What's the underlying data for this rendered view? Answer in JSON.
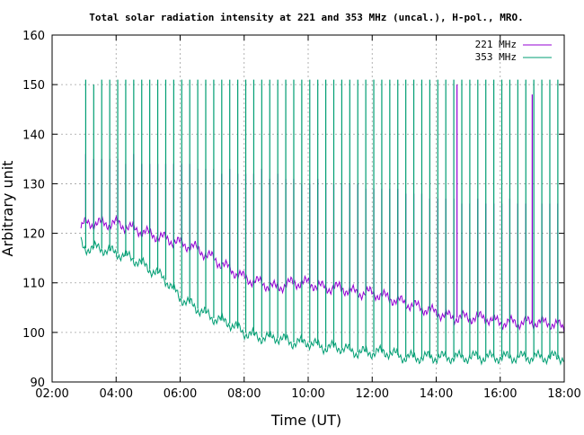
{
  "chart_data": {
    "type": "line",
    "title": "Total solar radiation intensity at 221 and 353 MHz (uncal.), H-pol., MRO.",
    "xlabel": "Time (UT)",
    "ylabel": "Arbitrary unit",
    "x_unit": "hours UT",
    "xlim": [
      2,
      18
    ],
    "ylim": [
      90,
      160
    ],
    "x_ticks": [
      {
        "value": 2,
        "label": "02:00"
      },
      {
        "value": 4,
        "label": "04:00"
      },
      {
        "value": 6,
        "label": "06:00"
      },
      {
        "value": 8,
        "label": "08:00"
      },
      {
        "value": 10,
        "label": "10:00"
      },
      {
        "value": 12,
        "label": "12:00"
      },
      {
        "value": 14,
        "label": "14:00"
      },
      {
        "value": 16,
        "label": "16:00"
      },
      {
        "value": 18,
        "label": "18:00"
      }
    ],
    "y_ticks": [
      {
        "value": 90,
        "label": "90"
      },
      {
        "value": 100,
        "label": "100"
      },
      {
        "value": 110,
        "label": "110"
      },
      {
        "value": 120,
        "label": "120"
      },
      {
        "value": 130,
        "label": "130"
      },
      {
        "value": 140,
        "label": "140"
      },
      {
        "value": 150,
        "label": "150"
      },
      {
        "value": 160,
        "label": "160"
      }
    ],
    "grid": true,
    "legend_position": "top-right",
    "series": [
      {
        "name": "221 MHz",
        "color": "#9400d3",
        "x": [
          2.9,
          3.0,
          3.5,
          4.0,
          4.5,
          5.0,
          5.5,
          6.0,
          6.5,
          7.0,
          7.5,
          8.0,
          8.5,
          9.0,
          9.5,
          10.0,
          10.5,
          11.0,
          11.5,
          12.0,
          12.5,
          13.0,
          13.5,
          14.0,
          14.5,
          15.0,
          15.5,
          16.0,
          16.5,
          17.0,
          17.5,
          18.0
        ],
        "y": [
          121,
          122,
          122,
          122,
          121,
          120,
          119,
          118,
          117,
          115,
          113,
          111,
          110,
          109,
          110,
          110,
          109,
          109,
          108,
          108,
          107,
          106,
          105,
          104,
          103,
          103,
          103,
          102,
          102,
          102,
          102,
          101
        ],
        "spikes": [
          {
            "x": 3.05,
            "y": 136
          },
          {
            "x": 3.3,
            "y": 135
          },
          {
            "x": 3.55,
            "y": 135
          },
          {
            "x": 3.8,
            "y": 135
          },
          {
            "x": 4.05,
            "y": 135
          },
          {
            "x": 4.3,
            "y": 134
          },
          {
            "x": 4.55,
            "y": 136
          },
          {
            "x": 4.8,
            "y": 134
          },
          {
            "x": 5.05,
            "y": 134
          },
          {
            "x": 5.3,
            "y": 134
          },
          {
            "x": 5.55,
            "y": 134
          },
          {
            "x": 5.8,
            "y": 134
          },
          {
            "x": 6.05,
            "y": 134
          },
          {
            "x": 6.3,
            "y": 134
          },
          {
            "x": 6.55,
            "y": 133
          },
          {
            "x": 6.8,
            "y": 133
          },
          {
            "x": 7.05,
            "y": 133
          },
          {
            "x": 7.3,
            "y": 132
          },
          {
            "x": 7.55,
            "y": 133
          },
          {
            "x": 7.8,
            "y": 132
          },
          {
            "x": 8.05,
            "y": 132
          },
          {
            "x": 8.3,
            "y": 132
          },
          {
            "x": 8.55,
            "y": 133
          },
          {
            "x": 8.8,
            "y": 131
          },
          {
            "x": 9.05,
            "y": 132
          },
          {
            "x": 9.3,
            "y": 131
          },
          {
            "x": 9.55,
            "y": 131
          },
          {
            "x": 9.8,
            "y": 130
          },
          {
            "x": 10.05,
            "y": 130
          },
          {
            "x": 10.3,
            "y": 131
          },
          {
            "x": 10.55,
            "y": 130
          },
          {
            "x": 10.8,
            "y": 130
          },
          {
            "x": 11.05,
            "y": 130
          },
          {
            "x": 11.3,
            "y": 130
          },
          {
            "x": 11.55,
            "y": 130
          },
          {
            "x": 11.8,
            "y": 129
          },
          {
            "x": 12.05,
            "y": 129
          },
          {
            "x": 12.3,
            "y": 129
          },
          {
            "x": 12.55,
            "y": 129
          },
          {
            "x": 12.8,
            "y": 129
          },
          {
            "x": 13.05,
            "y": 128
          },
          {
            "x": 13.3,
            "y": 128
          },
          {
            "x": 13.55,
            "y": 128
          },
          {
            "x": 13.8,
            "y": 127
          },
          {
            "x": 14.05,
            "y": 127
          },
          {
            "x": 14.3,
            "y": 127
          },
          {
            "x": 14.55,
            "y": 127
          },
          {
            "x": 14.65,
            "y": 150
          },
          {
            "x": 14.8,
            "y": 126
          },
          {
            "x": 15.05,
            "y": 126
          },
          {
            "x": 15.3,
            "y": 127
          },
          {
            "x": 15.55,
            "y": 126
          },
          {
            "x": 15.8,
            "y": 126
          },
          {
            "x": 16.05,
            "y": 126
          },
          {
            "x": 16.3,
            "y": 127
          },
          {
            "x": 16.55,
            "y": 126
          },
          {
            "x": 16.8,
            "y": 126
          },
          {
            "x": 17.0,
            "y": 148
          },
          {
            "x": 17.3,
            "y": 126
          },
          {
            "x": 17.55,
            "y": 126
          },
          {
            "x": 17.8,
            "y": 126
          }
        ]
      },
      {
        "name": "353 MHz",
        "color": "#009e73",
        "x": [
          2.9,
          3.0,
          3.5,
          4.0,
          4.5,
          5.0,
          5.5,
          6.0,
          6.5,
          7.0,
          7.5,
          8.0,
          8.5,
          9.0,
          9.5,
          10.0,
          10.5,
          11.0,
          11.5,
          12.0,
          12.5,
          13.0,
          13.5,
          14.0,
          14.5,
          15.0,
          15.5,
          16.0,
          16.5,
          17.0,
          17.5,
          18.0
        ],
        "y": [
          118,
          117,
          117,
          116,
          115,
          113,
          111,
          107,
          105,
          103,
          102,
          100,
          99,
          99,
          98,
          98,
          97,
          97,
          96,
          96,
          96,
          95,
          95,
          95,
          95,
          95,
          95,
          95,
          95,
          95,
          95,
          95
        ],
        "spikes": [
          {
            "x": 3.05,
            "y": 151
          },
          {
            "x": 3.3,
            "y": 150
          },
          {
            "x": 3.55,
            "y": 151
          },
          {
            "x": 3.8,
            "y": 151
          },
          {
            "x": 4.05,
            "y": 151
          },
          {
            "x": 4.3,
            "y": 151
          },
          {
            "x": 4.55,
            "y": 151
          },
          {
            "x": 4.8,
            "y": 151
          },
          {
            "x": 5.05,
            "y": 151
          },
          {
            "x": 5.3,
            "y": 151
          },
          {
            "x": 5.55,
            "y": 151
          },
          {
            "x": 5.8,
            "y": 151
          },
          {
            "x": 6.05,
            "y": 151
          },
          {
            "x": 6.3,
            "y": 151
          },
          {
            "x": 6.55,
            "y": 151
          },
          {
            "x": 6.8,
            "y": 151
          },
          {
            "x": 7.05,
            "y": 151
          },
          {
            "x": 7.3,
            "y": 151
          },
          {
            "x": 7.55,
            "y": 151
          },
          {
            "x": 7.8,
            "y": 151
          },
          {
            "x": 8.05,
            "y": 151
          },
          {
            "x": 8.3,
            "y": 151
          },
          {
            "x": 8.55,
            "y": 151
          },
          {
            "x": 8.8,
            "y": 151
          },
          {
            "x": 9.05,
            "y": 151
          },
          {
            "x": 9.3,
            "y": 151
          },
          {
            "x": 9.55,
            "y": 151
          },
          {
            "x": 9.8,
            "y": 151
          },
          {
            "x": 10.05,
            "y": 151
          },
          {
            "x": 10.3,
            "y": 151
          },
          {
            "x": 10.55,
            "y": 151
          },
          {
            "x": 10.8,
            "y": 151
          },
          {
            "x": 11.05,
            "y": 151
          },
          {
            "x": 11.3,
            "y": 151
          },
          {
            "x": 11.55,
            "y": 151
          },
          {
            "x": 11.8,
            "y": 151
          },
          {
            "x": 12.05,
            "y": 151
          },
          {
            "x": 12.3,
            "y": 151
          },
          {
            "x": 12.55,
            "y": 151
          },
          {
            "x": 12.8,
            "y": 151
          },
          {
            "x": 13.05,
            "y": 151
          },
          {
            "x": 13.3,
            "y": 151
          },
          {
            "x": 13.55,
            "y": 151
          },
          {
            "x": 13.8,
            "y": 151
          },
          {
            "x": 14.05,
            "y": 151
          },
          {
            "x": 14.3,
            "y": 151
          },
          {
            "x": 14.55,
            "y": 151
          },
          {
            "x": 14.8,
            "y": 151
          },
          {
            "x": 15.05,
            "y": 151
          },
          {
            "x": 15.3,
            "y": 151
          },
          {
            "x": 15.55,
            "y": 151
          },
          {
            "x": 15.8,
            "y": 151
          },
          {
            "x": 16.05,
            "y": 151
          },
          {
            "x": 16.3,
            "y": 151
          },
          {
            "x": 16.55,
            "y": 151
          },
          {
            "x": 16.8,
            "y": 151
          },
          {
            "x": 17.05,
            "y": 151
          },
          {
            "x": 17.3,
            "y": 151
          },
          {
            "x": 17.55,
            "y": 151
          },
          {
            "x": 17.8,
            "y": 151
          }
        ]
      }
    ]
  }
}
